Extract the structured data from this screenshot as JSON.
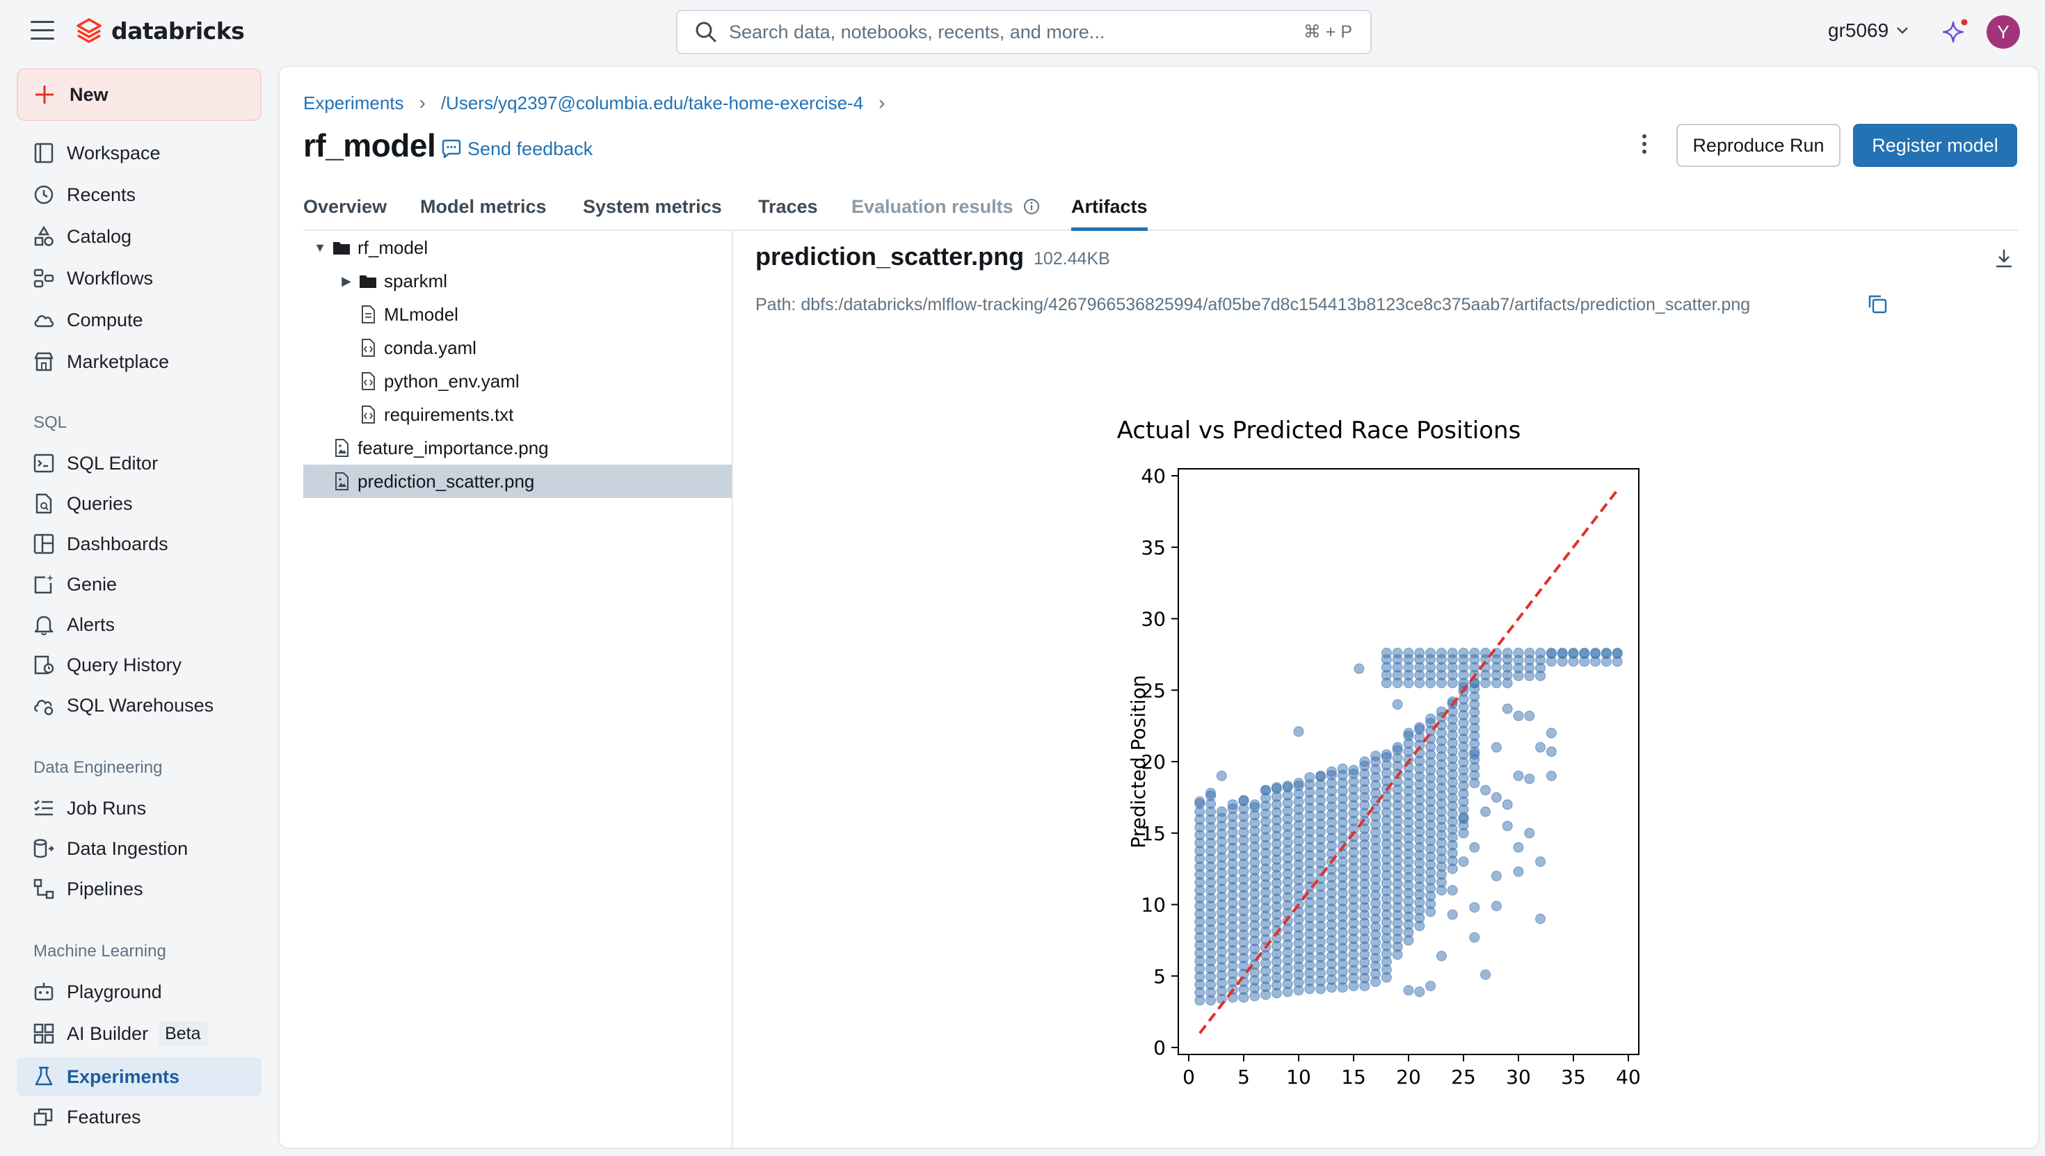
{
  "app": {
    "logo_text": "databricks"
  },
  "search": {
    "placeholder": "Search data, notebooks, recents, and more...",
    "shortcut": "⌘ + P"
  },
  "user": {
    "name": "gr5069",
    "avatar_initial": "Y"
  },
  "sidebar": {
    "new_label": "New",
    "items": [
      {
        "label": "Workspace",
        "icon": "workspace-icon"
      },
      {
        "label": "Recents",
        "icon": "clock-icon"
      },
      {
        "label": "Catalog",
        "icon": "catalog-icon"
      },
      {
        "label": "Workflows",
        "icon": "workflows-icon"
      },
      {
        "label": "Compute",
        "icon": "cloud-icon"
      },
      {
        "label": "Marketplace",
        "icon": "store-icon"
      }
    ],
    "sql_header": "SQL",
    "sql_items": [
      {
        "label": "SQL Editor",
        "icon": "sql-editor-icon"
      },
      {
        "label": "Queries",
        "icon": "queries-icon"
      },
      {
        "label": "Dashboards",
        "icon": "dashboards-icon"
      },
      {
        "label": "Genie",
        "icon": "genie-icon"
      },
      {
        "label": "Alerts",
        "icon": "bell-icon"
      },
      {
        "label": "Query History",
        "icon": "history-icon"
      },
      {
        "label": "SQL Warehouses",
        "icon": "warehouse-icon"
      }
    ],
    "de_header": "Data Engineering",
    "de_items": [
      {
        "label": "Job Runs",
        "icon": "list-check-icon"
      },
      {
        "label": "Data Ingestion",
        "icon": "ingestion-icon"
      },
      {
        "label": "Pipelines",
        "icon": "pipelines-icon"
      }
    ],
    "ml_header": "Machine Learning",
    "ml_items": [
      {
        "label": "Playground",
        "icon": "robot-icon"
      },
      {
        "label": "AI Builder",
        "icon": "grid-icon",
        "badge": "Beta"
      },
      {
        "label": "Experiments",
        "icon": "flask-icon",
        "active": true
      },
      {
        "label": "Features",
        "icon": "features-icon"
      }
    ]
  },
  "breadcrumb": [
    "Experiments",
    "/Users/yq2397@columbia.edu/take-home-exercise-4"
  ],
  "run": {
    "title": "rf_model",
    "feedback_label": "Send feedback",
    "reproduce_label": "Reproduce Run",
    "register_label": "Register model"
  },
  "tabs": [
    {
      "label": "Overview"
    },
    {
      "label": "Model metrics"
    },
    {
      "label": "System metrics"
    },
    {
      "label": "Traces"
    },
    {
      "label": "Evaluation results",
      "disabled": true
    },
    {
      "label": "Artifacts",
      "active": true
    }
  ],
  "tree": [
    {
      "label": "rf_model",
      "type": "folder",
      "expanded": true
    },
    {
      "label": "sparkml",
      "type": "folder",
      "expanded": false
    },
    {
      "label": "MLmodel",
      "type": "file"
    },
    {
      "label": "conda.yaml",
      "type": "code"
    },
    {
      "label": "python_env.yaml",
      "type": "code"
    },
    {
      "label": "requirements.txt",
      "type": "code"
    },
    {
      "label": "feature_importance.png",
      "type": "image"
    },
    {
      "label": "prediction_scatter.png",
      "type": "image",
      "selected": true
    }
  ],
  "artifact": {
    "name": "prediction_scatter.png",
    "size": "102.44KB",
    "path": "Path: dbfs:/databricks/mlflow-tracking/4267966536825994/af05be7d8c154413b8123ce8c375aab7/artifacts/prediction_scatter.png"
  },
  "colors": {
    "accent": "#2272b4",
    "point": "#3a72b0",
    "ideal_line": "#e0322b"
  },
  "chart_data": {
    "type": "scatter",
    "title": "Actual vs Predicted Race Positions",
    "ylabel": "Predicted Position",
    "xlabel": "",
    "xlim": [
      0,
      40
    ],
    "ylim": [
      0,
      40
    ],
    "xticks": [
      0,
      5,
      10,
      15,
      20,
      25,
      30,
      35,
      40
    ],
    "yticks": [
      0,
      5,
      10,
      15,
      20,
      25,
      30,
      35,
      40
    ],
    "grid": false,
    "reference_line": {
      "from": [
        1,
        1
      ],
      "to": [
        39,
        39
      ],
      "style": "dashed",
      "color": "#e0322b"
    },
    "series": [
      {
        "marker": "circle",
        "color": "#3a72b0",
        "alpha": 0.5,
        "columns": [
          {
            "x": 1,
            "y_min": 3.3,
            "y_max": 17.2
          },
          {
            "x": 2,
            "y_min": 3.3,
            "y_max": 17.8
          },
          {
            "x": 3,
            "y_min": 3.4,
            "y_max": 16.5
          },
          {
            "x": 4,
            "y_min": 3.5,
            "y_max": 17.0
          },
          {
            "x": 5,
            "y_min": 3.5,
            "y_max": 17.3
          },
          {
            "x": 6,
            "y_min": 3.6,
            "y_max": 17.0
          },
          {
            "x": 7,
            "y_min": 3.7,
            "y_max": 18.0
          },
          {
            "x": 8,
            "y_min": 3.8,
            "y_max": 18.2
          },
          {
            "x": 9,
            "y_min": 3.9,
            "y_max": 18.3
          },
          {
            "x": 10,
            "y_min": 4.0,
            "y_max": 18.5
          },
          {
            "x": 11,
            "y_min": 4.1,
            "y_max": 18.9
          },
          {
            "x": 12,
            "y_min": 4.1,
            "y_max": 19.0
          },
          {
            "x": 13,
            "y_min": 4.2,
            "y_max": 19.3
          },
          {
            "x": 14,
            "y_min": 4.2,
            "y_max": 19.5
          },
          {
            "x": 15,
            "y_min": 4.3,
            "y_max": 19.4
          },
          {
            "x": 16,
            "y_min": 4.3,
            "y_max": 20.0
          },
          {
            "x": 17,
            "y_min": 4.6,
            "y_max": 20.4
          },
          {
            "x": 18,
            "y_min": 4.9,
            "y_max": 20.5
          },
          {
            "x": 19,
            "y_min": 6.5,
            "y_max": 21.0
          },
          {
            "x": 20,
            "y_min": 7.5,
            "y_max": 22.0
          },
          {
            "x": 21,
            "y_min": 8.5,
            "y_max": 22.4
          },
          {
            "x": 22,
            "y_min": 9.5,
            "y_max": 23.0
          },
          {
            "x": 23,
            "y_min": 11.0,
            "y_max": 23.5
          },
          {
            "x": 24,
            "y_min": 12.5,
            "y_max": 24.2
          },
          {
            "x": 25,
            "y_min": 15.0,
            "y_max": 25.2
          },
          {
            "x": 26,
            "y_min": 18.5,
            "y_max": 25.5
          }
        ],
        "top_band": {
          "y_min": 25.5,
          "y_max": 27.6,
          "x_from": 18,
          "x_to": 39
        },
        "outliers": [
          [
            10,
            22.1
          ],
          [
            3,
            19.0
          ],
          [
            15.5,
            26.5
          ],
          [
            19,
            24.0
          ],
          [
            20,
            4.0
          ],
          [
            21,
            3.9
          ],
          [
            22,
            4.3
          ],
          [
            23,
            6.4
          ],
          [
            24,
            9.3
          ],
          [
            24,
            11.0
          ],
          [
            25,
            16.0
          ],
          [
            25,
            13.0
          ],
          [
            26,
            9.8
          ],
          [
            26,
            7.7
          ],
          [
            27,
            5.1
          ],
          [
            28,
            9.9
          ],
          [
            28,
            12.0
          ],
          [
            29,
            15.5
          ],
          [
            29,
            17.0
          ],
          [
            30,
            14.0
          ],
          [
            30,
            12.3
          ],
          [
            31,
            18.8
          ],
          [
            31,
            15.0
          ],
          [
            32,
            21.0
          ],
          [
            32,
            13.0
          ],
          [
            32,
            9.0
          ],
          [
            33,
            19.0
          ],
          [
            33,
            20.7
          ],
          [
            27,
            18.0
          ],
          [
            28,
            21.0
          ],
          [
            29,
            23.7
          ],
          [
            30,
            23.2
          ],
          [
            33,
            22.0
          ],
          [
            30,
            19.0
          ],
          [
            31,
            23.2
          ],
          [
            26,
            14.0
          ],
          [
            26,
            20.5
          ],
          [
            27,
            16.5
          ],
          [
            28,
            17.5
          ]
        ]
      }
    ]
  }
}
